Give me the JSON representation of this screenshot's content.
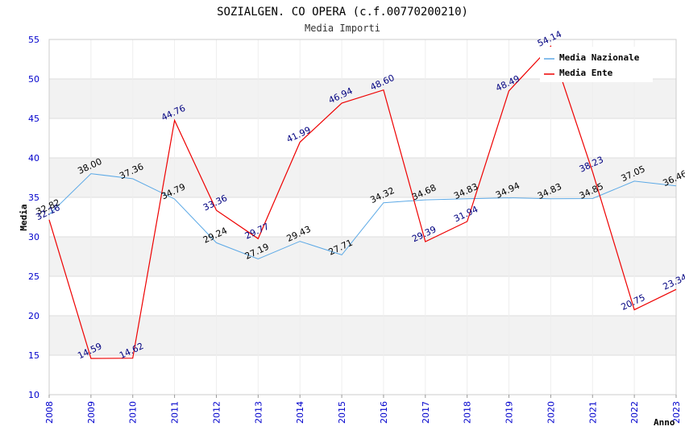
{
  "chart_data": {
    "type": "line",
    "title": "SOZIALGEN. CO OPERA (c.f.00770200210)",
    "subtitle": "Media Importi",
    "xlabel": "Anno",
    "ylabel": "Media",
    "ylim": [
      10,
      55
    ],
    "yticks": [
      "10",
      "15",
      "20",
      "25",
      "30",
      "35",
      "40",
      "45",
      "50",
      "55"
    ],
    "x": [
      "2008",
      "2009",
      "2010",
      "2011",
      "2012",
      "2013",
      "2014",
      "2015",
      "2016",
      "2017",
      "2018",
      "2019",
      "2020",
      "2021",
      "2022",
      "2023"
    ],
    "series": [
      {
        "name": "Media Nazionale",
        "color": "#5ca9e6",
        "labelColor": "#000000",
        "values": [
          32.82,
          38.0,
          37.36,
          34.79,
          29.24,
          27.19,
          29.43,
          27.71,
          34.32,
          34.68,
          34.83,
          34.94,
          34.83,
          34.85,
          37.05,
          36.46
        ],
        "labels": [
          "32.82",
          "38.00",
          "37.36",
          "34.79",
          "29.24",
          "27.19",
          "29.43",
          "27.71",
          "34.32",
          "34.68",
          "34.83",
          "34.94",
          "34.83",
          "34.85",
          "37.05",
          "36.46"
        ]
      },
      {
        "name": "Media Ente",
        "color": "#ee0000",
        "labelColor": "#000080",
        "values": [
          32.16,
          14.59,
          14.62,
          44.76,
          33.36,
          29.77,
          41.99,
          46.94,
          48.6,
          29.39,
          31.94,
          48.49,
          54.14,
          38.23,
          20.75,
          23.34
        ],
        "labels": [
          "32.16",
          "14.59",
          "14.62",
          "44.76",
          "33.36",
          "29.77",
          "41.99",
          "46.94",
          "48.60",
          "29.39",
          "31.94",
          "48.49",
          "54.14",
          "38.23",
          "20.75",
          "23.34"
        ]
      }
    ],
    "grid": true,
    "legend": "top-right"
  }
}
